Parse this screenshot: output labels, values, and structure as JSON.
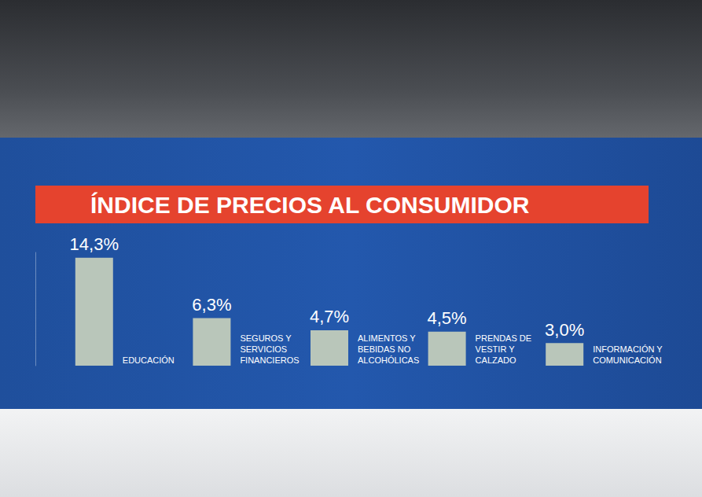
{
  "chart_data": {
    "type": "bar",
    "title": "ÍNDICE DE PRECIOS AL CONSUMIDOR",
    "categories": [
      "EDUCACIÓN",
      "SEGUROS Y SERVICIOS FINANCIEROS",
      "ALIMENTOS Y BEBIDAS NO ALCOHÓLICAS",
      "PRENDAS DE VESTIR Y CALZADO",
      "INFORMACIÓN Y COMUNICACIÓN"
    ],
    "values": [
      14.3,
      6.3,
      4.7,
      4.5,
      3.0
    ],
    "value_labels": [
      "14,3%",
      "6,3%",
      "4,7%",
      "4,5%",
      "3,0%"
    ],
    "color": "#b9c6ba",
    "ylim": [
      0,
      15
    ],
    "grid": false,
    "data_labels": true,
    "tick_labels": "x"
  }
}
